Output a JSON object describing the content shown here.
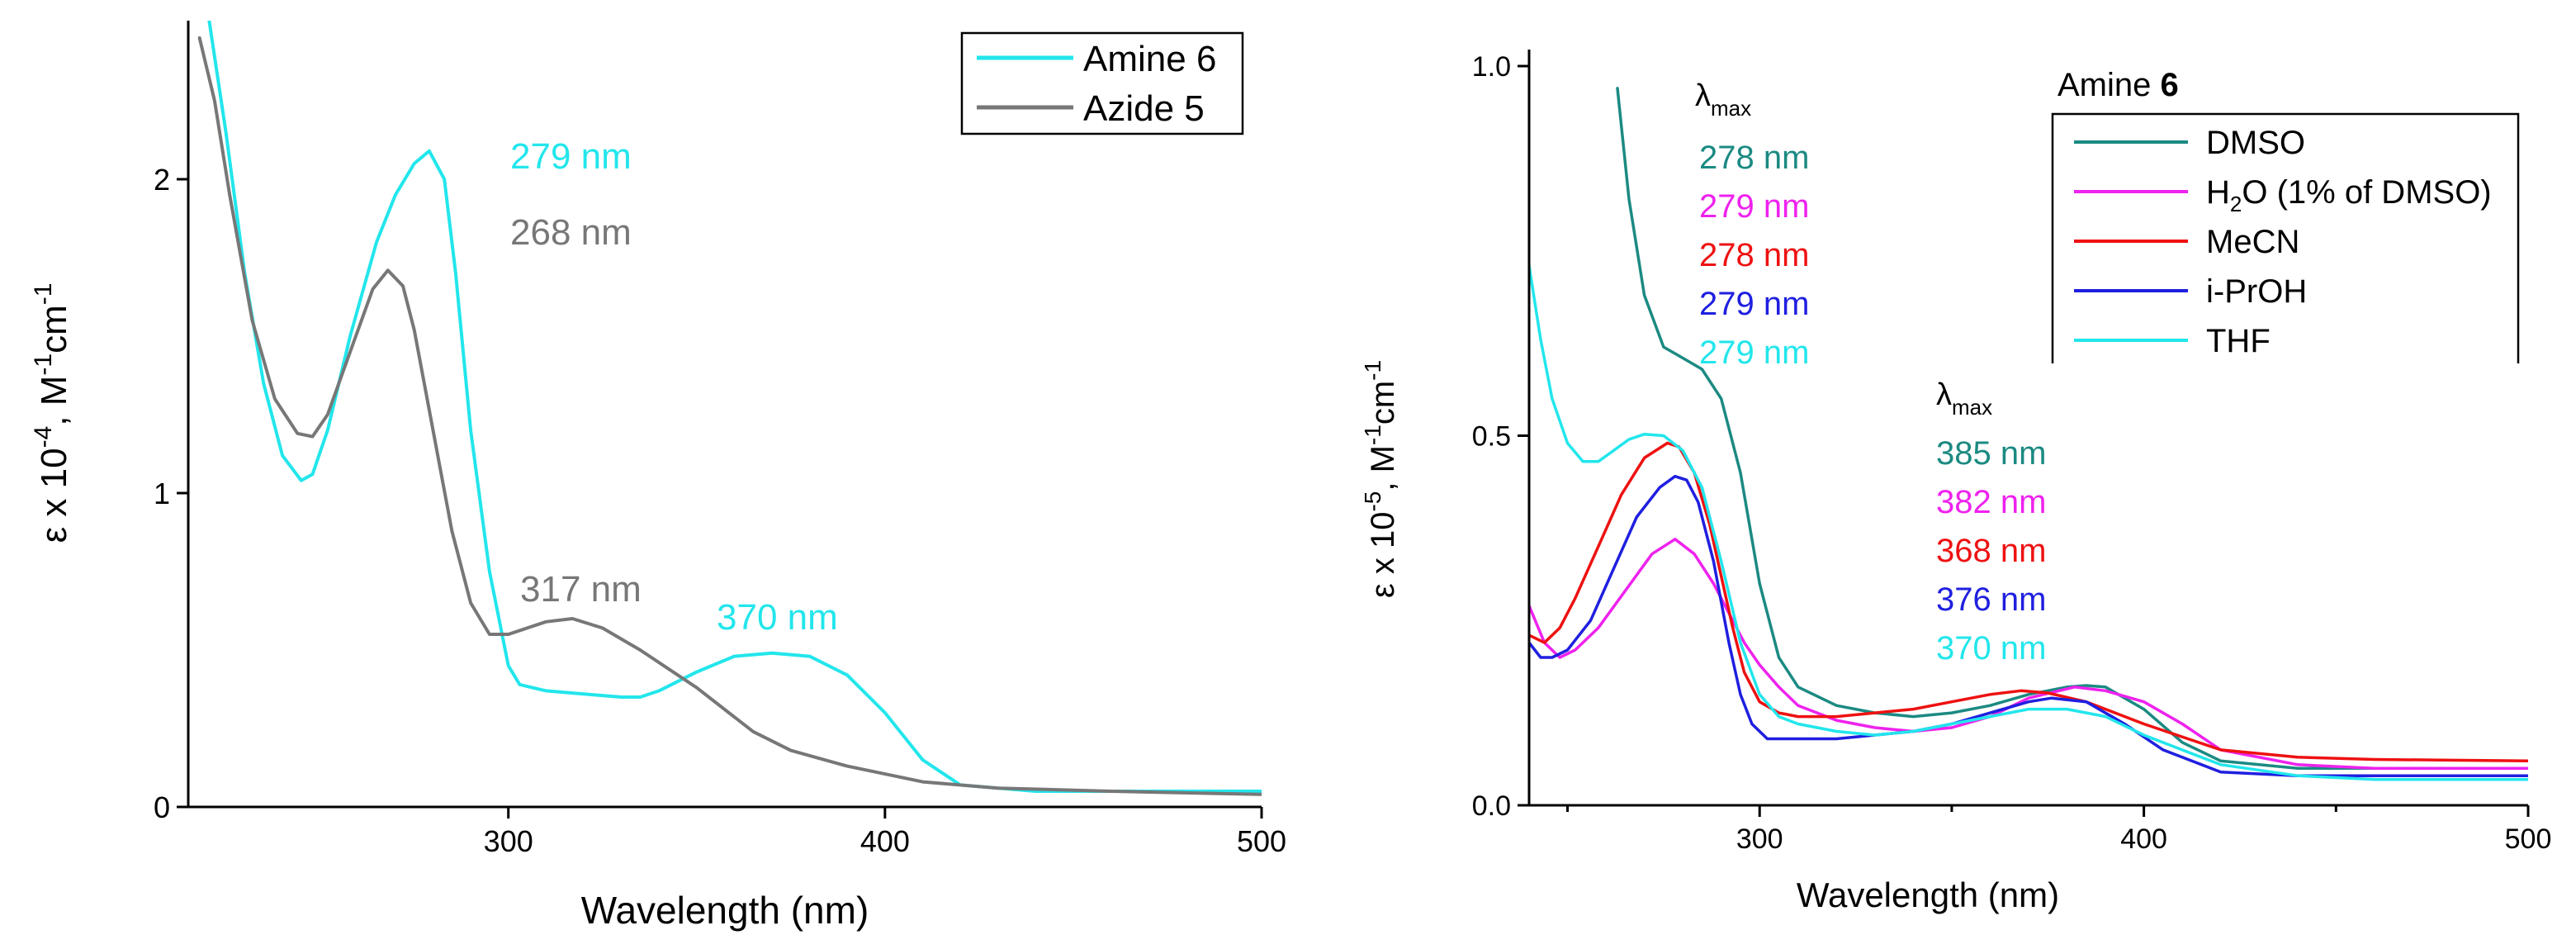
{
  "colors": {
    "amine": "#22e6ec",
    "azide": "#777777",
    "dmso": "#1b8a82",
    "h2o": "#ee22ee",
    "mecn": "#ee1111",
    "iproh": "#1f1fe0",
    "thf": "#22e6ec"
  },
  "chart_data": [
    {
      "type": "line",
      "title": "",
      "xlabel": "Wavelength (nm)",
      "ylabel": "ε x 10⁻⁴, M⁻¹cm⁻¹",
      "xlim": [
        215,
        500
      ],
      "ylim": [
        0,
        2.5
      ],
      "xticks": [
        "300",
        "400",
        "500"
      ],
      "yticks": [
        "0",
        "1",
        "2"
      ],
      "legend": {
        "position": "top-right",
        "entries": [
          "Amine 6",
          "Azide 5"
        ]
      },
      "series": [
        {
          "name": "Amine 6",
          "x": [
            220,
            225,
            230,
            235,
            240,
            245,
            248,
            252,
            258,
            265,
            270,
            275,
            279,
            283,
            286,
            290,
            295,
            300,
            303,
            310,
            320,
            330,
            335,
            340,
            350,
            360,
            370,
            380,
            390,
            400,
            410,
            420,
            440,
            460,
            480,
            500
          ],
          "y": [
            2.55,
            2.15,
            1.7,
            1.35,
            1.12,
            1.04,
            1.06,
            1.2,
            1.5,
            1.8,
            1.95,
            2.05,
            2.09,
            2.0,
            1.7,
            1.2,
            0.75,
            0.45,
            0.39,
            0.37,
            0.36,
            0.35,
            0.35,
            0.37,
            0.43,
            0.48,
            0.49,
            0.48,
            0.42,
            0.3,
            0.15,
            0.07,
            0.05,
            0.05,
            0.05,
            0.05
          ]
        },
        {
          "name": "Azide 5",
          "x": [
            218,
            222,
            226,
            232,
            238,
            244,
            248,
            252,
            258,
            264,
            268,
            272,
            275,
            280,
            285,
            290,
            295,
            300,
            305,
            310,
            317,
            325,
            335,
            350,
            365,
            375,
            390,
            410,
            430,
            460,
            500
          ],
          "y": [
            2.45,
            2.25,
            1.95,
            1.55,
            1.3,
            1.19,
            1.18,
            1.25,
            1.45,
            1.65,
            1.71,
            1.66,
            1.52,
            1.2,
            0.88,
            0.65,
            0.55,
            0.55,
            0.57,
            0.59,
            0.6,
            0.57,
            0.5,
            0.38,
            0.24,
            0.18,
            0.13,
            0.08,
            0.06,
            0.05,
            0.04
          ]
        }
      ],
      "annotations": [
        {
          "text": "279 nm",
          "color": "amine"
        },
        {
          "text": "268 nm",
          "color": "azide"
        },
        {
          "text": "317 nm",
          "color": "azide"
        },
        {
          "text": "370 nm",
          "color": "amine"
        }
      ]
    },
    {
      "type": "line",
      "title": "Amine 6",
      "xlabel": "Wavelength (nm)",
      "ylabel": "ε x 10⁻⁵, M⁻¹cm⁻¹",
      "xlim": [
        240,
        500
      ],
      "ylim": [
        0,
        1.0
      ],
      "xticks": [
        "300",
        "400",
        "500"
      ],
      "yticks": [
        "0.0",
        "0.5",
        "1.0"
      ],
      "legend": {
        "position": "top-right",
        "entries": [
          "DMSO",
          "H2O (1% of DMSO)",
          "MeCN",
          "i-PrOH",
          "THF"
        ]
      },
      "series": [
        {
          "name": "DMSO",
          "x": [
            263,
            266,
            270,
            275,
            280,
            285,
            290,
            295,
            300,
            305,
            310,
            320,
            330,
            340,
            350,
            360,
            370,
            380,
            385,
            390,
            400,
            410,
            420,
            440,
            460,
            480,
            500
          ],
          "y": [
            0.97,
            0.82,
            0.69,
            0.62,
            0.605,
            0.59,
            0.55,
            0.45,
            0.3,
            0.2,
            0.16,
            0.135,
            0.125,
            0.12,
            0.125,
            0.135,
            0.15,
            0.16,
            0.162,
            0.16,
            0.13,
            0.085,
            0.06,
            0.05,
            0.05,
            0.05,
            0.05
          ]
        },
        {
          "name": "H2O (1% of DMSO)",
          "x": [
            240,
            244,
            248,
            252,
            258,
            265,
            272,
            278,
            283,
            288,
            292,
            296,
            300,
            305,
            310,
            320,
            330,
            340,
            350,
            360,
            370,
            382,
            390,
            400,
            410,
            420,
            440,
            460,
            480,
            500
          ],
          "y": [
            0.27,
            0.22,
            0.2,
            0.21,
            0.24,
            0.29,
            0.34,
            0.36,
            0.34,
            0.3,
            0.26,
            0.22,
            0.19,
            0.16,
            0.135,
            0.115,
            0.105,
            0.1,
            0.105,
            0.12,
            0.145,
            0.16,
            0.155,
            0.14,
            0.11,
            0.075,
            0.055,
            0.05,
            0.05,
            0.05
          ]
        },
        {
          "name": "MeCN",
          "x": [
            240,
            244,
            248,
            252,
            258,
            264,
            270,
            276,
            279,
            283,
            287,
            290,
            293,
            296,
            300,
            305,
            310,
            320,
            330,
            340,
            350,
            360,
            368,
            375,
            385,
            400,
            420,
            440,
            460,
            480,
            500
          ],
          "y": [
            0.23,
            0.22,
            0.24,
            0.28,
            0.35,
            0.42,
            0.47,
            0.49,
            0.485,
            0.45,
            0.38,
            0.31,
            0.24,
            0.18,
            0.14,
            0.125,
            0.12,
            0.12,
            0.125,
            0.13,
            0.14,
            0.15,
            0.155,
            0.152,
            0.14,
            0.11,
            0.075,
            0.065,
            0.062,
            0.061,
            0.06
          ]
        },
        {
          "name": "i-PrOH",
          "x": [
            240,
            243,
            246,
            250,
            256,
            262,
            268,
            274,
            278,
            281,
            284,
            288,
            292,
            295,
            298,
            302,
            306,
            310,
            320,
            330,
            340,
            350,
            360,
            370,
            376,
            385,
            395,
            405,
            420,
            440,
            460,
            480,
            500
          ],
          "y": [
            0.22,
            0.2,
            0.2,
            0.21,
            0.25,
            0.32,
            0.39,
            0.43,
            0.445,
            0.44,
            0.41,
            0.33,
            0.22,
            0.15,
            0.11,
            0.09,
            0.09,
            0.09,
            0.09,
            0.095,
            0.1,
            0.11,
            0.125,
            0.14,
            0.145,
            0.14,
            0.11,
            0.075,
            0.045,
            0.04,
            0.04,
            0.04,
            0.04
          ]
        },
        {
          "name": "THF",
          "x": [
            240,
            243,
            246,
            250,
            254,
            258,
            262,
            266,
            270,
            275,
            280,
            285,
            290,
            295,
            300,
            305,
            310,
            320,
            330,
            340,
            350,
            360,
            370,
            380,
            390,
            400,
            420,
            440,
            460,
            480,
            500
          ],
          "y": [
            0.73,
            0.63,
            0.55,
            0.49,
            0.465,
            0.465,
            0.48,
            0.495,
            0.502,
            0.5,
            0.48,
            0.43,
            0.33,
            0.22,
            0.15,
            0.12,
            0.11,
            0.1,
            0.095,
            0.1,
            0.11,
            0.12,
            0.13,
            0.13,
            0.12,
            0.095,
            0.055,
            0.04,
            0.035,
            0.035,
            0.035
          ]
        }
      ],
      "lambda_max_label": "λmax",
      "lambda_max_uv": [
        {
          "text": "278 nm",
          "color": "dmso"
        },
        {
          "text": "279 nm",
          "color": "h2o"
        },
        {
          "text": "278 nm",
          "color": "mecn"
        },
        {
          "text": "279 nm",
          "color": "iproh"
        },
        {
          "text": "279 nm",
          "color": "thf"
        }
      ],
      "lambda_max_vis": [
        {
          "text": "385 nm",
          "color": "dmso"
        },
        {
          "text": "382 nm",
          "color": "h2o"
        },
        {
          "text": "368 nm",
          "color": "mecn"
        },
        {
          "text": "376 nm",
          "color": "iproh"
        },
        {
          "text": "370 nm",
          "color": "thf"
        }
      ]
    }
  ]
}
